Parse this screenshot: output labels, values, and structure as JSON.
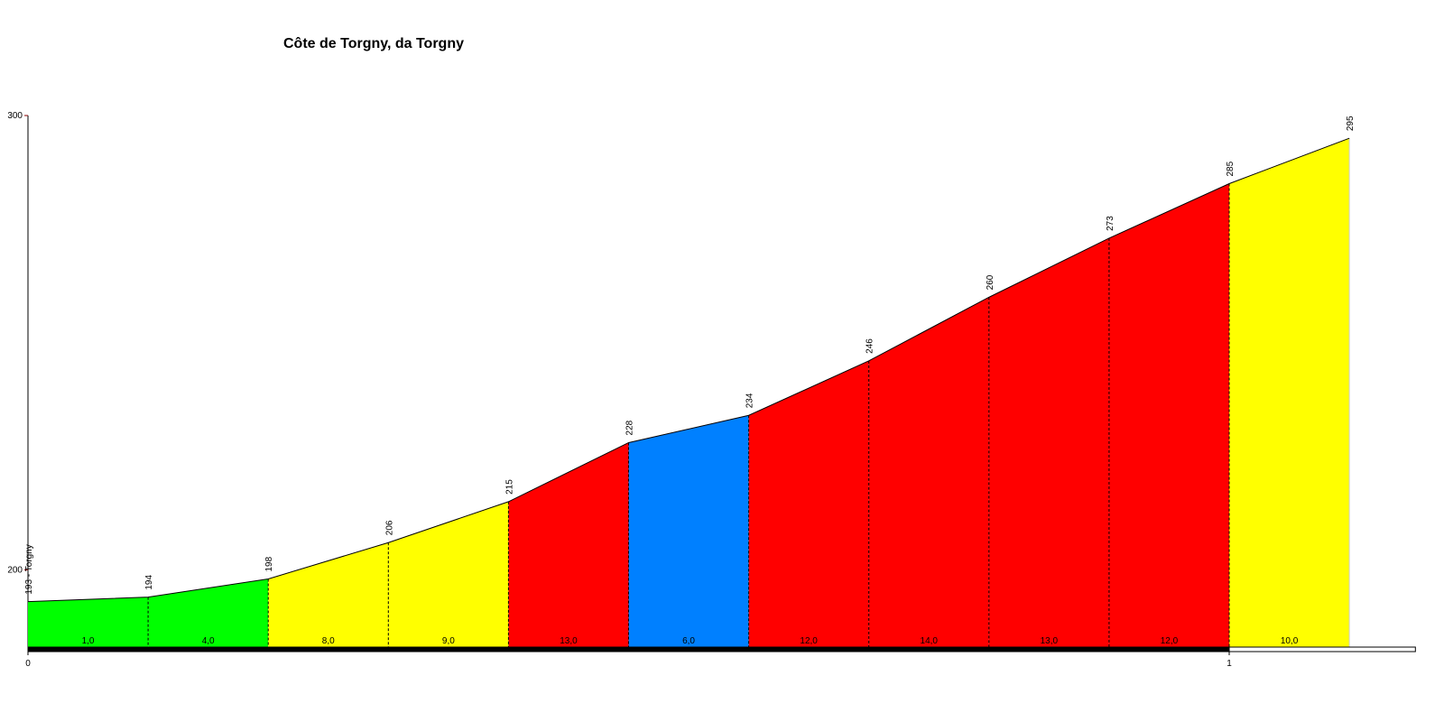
{
  "chart_data": {
    "type": "profile",
    "title": "Côte de Torgny, da Torgny",
    "x": [
      0,
      0.1,
      0.2,
      0.3,
      0.4,
      0.5,
      0.6,
      0.7,
      0.8,
      0.9,
      1,
      1.1
    ],
    "series": [
      {
        "values": [
          193,
          194,
          198,
          206,
          215,
          228,
          234,
          246,
          260,
          273,
          285,
          295
        ],
        "value_labels": [
          "193 - Torgny",
          "194",
          "198",
          "206",
          "215",
          "228",
          "234",
          "246",
          "260",
          "273",
          "285",
          "295"
        ]
      }
    ],
    "gradients": {
      "values": [
        1,
        4,
        8,
        9,
        13,
        6,
        12,
        14,
        13,
        12,
        10
      ],
      "value_labels": [
        "1,0",
        "4,0",
        "8,0",
        "9,0",
        "13,0",
        "6,0",
        "12,0",
        "14,0",
        "13,0",
        "12,0",
        "10,0"
      ],
      "colors": [
        "#00ff00",
        "#00ff00",
        "#ffff00",
        "#ffff00",
        "#ff0000",
        "#0080ff",
        "#ff0000",
        "#ff0000",
        "#ff0000",
        "#ff0000",
        "#ffff00"
      ]
    },
    "xlim": [
      0,
      1.155
    ],
    "xticks": [
      0,
      1
    ],
    "ylim": [
      183,
      300
    ],
    "yticks": [
      200,
      300
    ]
  }
}
